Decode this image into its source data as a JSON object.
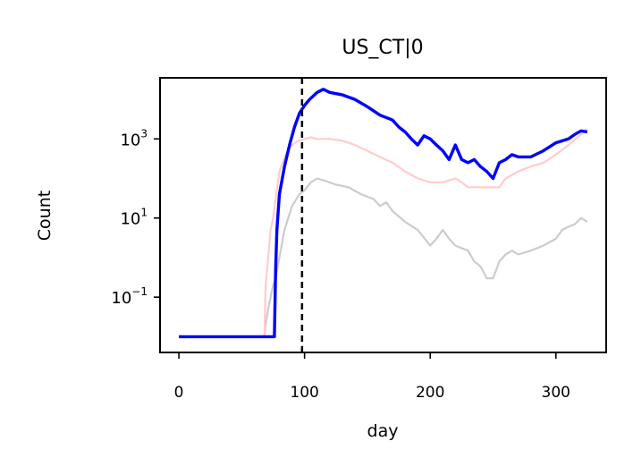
{
  "chart_data": {
    "type": "line",
    "title": "US_CT|0",
    "xlabel": "day",
    "ylabel": "Count",
    "xlim": [
      -15,
      340
    ],
    "ylim": [
      0.004,
      35000
    ],
    "yscale": "log",
    "x_ticks": [
      0,
      100,
      200,
      300
    ],
    "x_tick_labels": [
      "0",
      "100",
      "200",
      "300"
    ],
    "y_ticks": [
      {
        "value": 0.1,
        "base": "10",
        "exp": "−1"
      },
      {
        "value": 10,
        "base": "10",
        "exp": "1"
      },
      {
        "value": 1000,
        "base": "10",
        "exp": "3"
      }
    ],
    "vline": {
      "x": 98,
      "style": "dashed",
      "color": "#000000"
    },
    "grid": false,
    "legend": "none",
    "series": [
      {
        "color": "#cccccc",
        "line_width": "thin",
        "points": [
          [
            0,
            0.01
          ],
          [
            68,
            0.01
          ],
          [
            69,
            0.02
          ],
          [
            71,
            0.05
          ],
          [
            73,
            0.1
          ],
          [
            75,
            0.2
          ],
          [
            77,
            0.3
          ],
          [
            80,
            1
          ],
          [
            84,
            5
          ],
          [
            90,
            20
          ],
          [
            96,
            40
          ],
          [
            100,
            50
          ],
          [
            105,
            80
          ],
          [
            110,
            100
          ],
          [
            115,
            90
          ],
          [
            125,
            70
          ],
          [
            135,
            60
          ],
          [
            145,
            40
          ],
          [
            155,
            30
          ],
          [
            160,
            20
          ],
          [
            165,
            25
          ],
          [
            170,
            15
          ],
          [
            180,
            8
          ],
          [
            190,
            5
          ],
          [
            200,
            2
          ],
          [
            205,
            3
          ],
          [
            210,
            5
          ],
          [
            215,
            3
          ],
          [
            220,
            2
          ],
          [
            230,
            1.5
          ],
          [
            235,
            0.8
          ],
          [
            240,
            0.6
          ],
          [
            245,
            0.3
          ],
          [
            250,
            0.3
          ],
          [
            255,
            0.8
          ],
          [
            260,
            1.2
          ],
          [
            265,
            1.5
          ],
          [
            270,
            1.2
          ],
          [
            280,
            1.5
          ],
          [
            290,
            2
          ],
          [
            300,
            3
          ],
          [
            305,
            5
          ],
          [
            310,
            6
          ],
          [
            315,
            7
          ],
          [
            320,
            10
          ],
          [
            325,
            8
          ]
        ]
      },
      {
        "color": "#ffcccc",
        "line_width": "thin",
        "points": [
          [
            0,
            0.01
          ],
          [
            68,
            0.01
          ],
          [
            69,
            0.2
          ],
          [
            71,
            1
          ],
          [
            73,
            5
          ],
          [
            75,
            10
          ],
          [
            77,
            30
          ],
          [
            80,
            150
          ],
          [
            85,
            400
          ],
          [
            90,
            700
          ],
          [
            95,
            900
          ],
          [
            100,
            1000
          ],
          [
            105,
            1100
          ],
          [
            110,
            1000
          ],
          [
            120,
            1000
          ],
          [
            130,
            900
          ],
          [
            140,
            700
          ],
          [
            150,
            500
          ],
          [
            160,
            350
          ],
          [
            170,
            250
          ],
          [
            180,
            150
          ],
          [
            190,
            100
          ],
          [
            200,
            80
          ],
          [
            210,
            80
          ],
          [
            220,
            100
          ],
          [
            225,
            80
          ],
          [
            230,
            60
          ],
          [
            240,
            60
          ],
          [
            250,
            60
          ],
          [
            255,
            60
          ],
          [
            260,
            100
          ],
          [
            270,
            150
          ],
          [
            280,
            200
          ],
          [
            290,
            250
          ],
          [
            300,
            400
          ],
          [
            310,
            700
          ],
          [
            320,
            1300
          ],
          [
            325,
            1800
          ]
        ]
      },
      {
        "color": "#0000ff",
        "line_width": "thick",
        "points": [
          [
            0,
            0.01
          ],
          [
            76,
            0.01
          ],
          [
            77,
            0.5
          ],
          [
            78,
            5
          ],
          [
            80,
            40
          ],
          [
            84,
            200
          ],
          [
            88,
            700
          ],
          [
            92,
            2000
          ],
          [
            96,
            4500
          ],
          [
            100,
            7000
          ],
          [
            104,
            10000
          ],
          [
            110,
            15000
          ],
          [
            115,
            18000
          ],
          [
            120,
            15000
          ],
          [
            130,
            13000
          ],
          [
            140,
            10000
          ],
          [
            150,
            6500
          ],
          [
            160,
            4000
          ],
          [
            170,
            3000
          ],
          [
            175,
            2000
          ],
          [
            180,
            1500
          ],
          [
            185,
            1000
          ],
          [
            190,
            700
          ],
          [
            195,
            1200
          ],
          [
            200,
            1000
          ],
          [
            205,
            700
          ],
          [
            210,
            500
          ],
          [
            215,
            300
          ],
          [
            220,
            700
          ],
          [
            225,
            300
          ],
          [
            230,
            250
          ],
          [
            235,
            300
          ],
          [
            240,
            200
          ],
          [
            245,
            150
          ],
          [
            250,
            100
          ],
          [
            255,
            250
          ],
          [
            260,
            300
          ],
          [
            265,
            400
          ],
          [
            270,
            350
          ],
          [
            280,
            350
          ],
          [
            290,
            500
          ],
          [
            300,
            800
          ],
          [
            310,
            1000
          ],
          [
            315,
            1300
          ],
          [
            320,
            1600
          ],
          [
            325,
            1500
          ]
        ]
      }
    ]
  }
}
